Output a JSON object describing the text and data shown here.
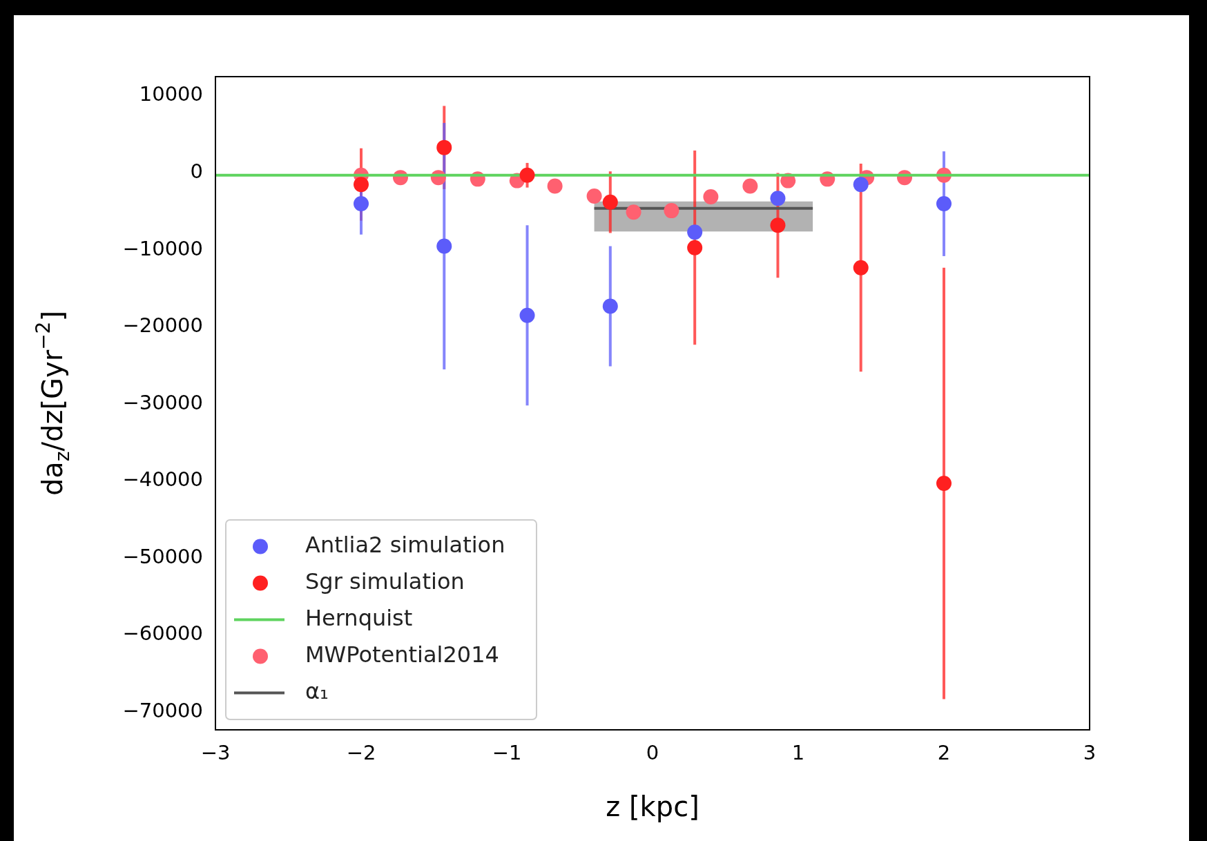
{
  "chart_data": {
    "type": "scatter",
    "xlabel": "z [kpc]",
    "ylabel": "da$_{z}$/dz[Gyr$^{−2}$]",
    "xlim": [
      -3,
      3
    ],
    "xticks": [
      {
        "value": -3,
        "label": "−3"
      },
      {
        "value": -2,
        "label": "−2"
      },
      {
        "value": -1,
        "label": "−1"
      },
      0,
      1,
      2,
      3
    ],
    "ylim": [
      -72300,
      12500
    ],
    "yticks": [
      10000,
      0,
      {
        "value": -10000,
        "label": "−10000"
      },
      {
        "value": -20000,
        "label": "−20000"
      },
      {
        "value": -30000,
        "label": "−30000"
      },
      {
        "value": -40000,
        "label": "−40000"
      },
      {
        "value": -50000,
        "label": "−50000"
      },
      {
        "value": -60000,
        "label": "−60000"
      },
      {
        "value": -70000,
        "label": "−70000"
      }
    ],
    "grid": false,
    "legend": "bottom left",
    "series": [
      {
        "name": "Antlia2 simulation",
        "marker": "circle",
        "color": "#5c5cfa",
        "x": [
          -2,
          -1.43,
          -0.86,
          -0.29,
          0.29,
          0.86,
          1.43,
          2
        ],
        "values": [
          -4000,
          -9500,
          -18500,
          -17300,
          -7700,
          -3300,
          -1500,
          -4000
        ],
        "errors": [
          4000,
          16000,
          11700,
          7800,
          null,
          null,
          null,
          6800
        ]
      },
      {
        "name": "Sgr simulation",
        "marker": "circle",
        "color": "#ff2020",
        "x": [
          -2,
          -1.43,
          -0.86,
          -0.29,
          0.29,
          0.86,
          1.43,
          2
        ],
        "values": [
          -1500,
          3300,
          -300,
          -3800,
          -9700,
          -6800,
          -12300,
          -40300
        ],
        "errors": [
          4700,
          5400,
          1600,
          4000,
          12600,
          6800,
          13500,
          28000
        ]
      },
      {
        "name": "Hernquist",
        "type": "line",
        "marker": "none",
        "color": "#5fd35f",
        "x": [
          -3,
          3
        ],
        "values": [
          -300,
          -300
        ]
      },
      {
        "name": "MWPotential2014",
        "marker": "circle",
        "color": "#ff6070",
        "x": [
          -2,
          -1.73,
          -1.47,
          -1.2,
          -0.93,
          -0.67,
          -0.4,
          -0.13,
          0.13,
          0.4,
          0.67,
          0.93,
          1.2,
          1.47,
          1.73,
          2
        ],
        "values": [
          -300,
          -600,
          -600,
          -800,
          -1000,
          -1700,
          -3000,
          -5100,
          -4900,
          -3100,
          -1700,
          -1000,
          -800,
          -600,
          -600,
          -300
        ]
      },
      {
        "name": "α₁",
        "type": "line",
        "marker": "none",
        "color": "#555555",
        "x": [
          -0.4,
          1.1
        ],
        "values": [
          -4600,
          -4600
        ],
        "lower": [
          -7600,
          -7600
        ],
        "upper": [
          -3700,
          -3700
        ]
      }
    ]
  }
}
